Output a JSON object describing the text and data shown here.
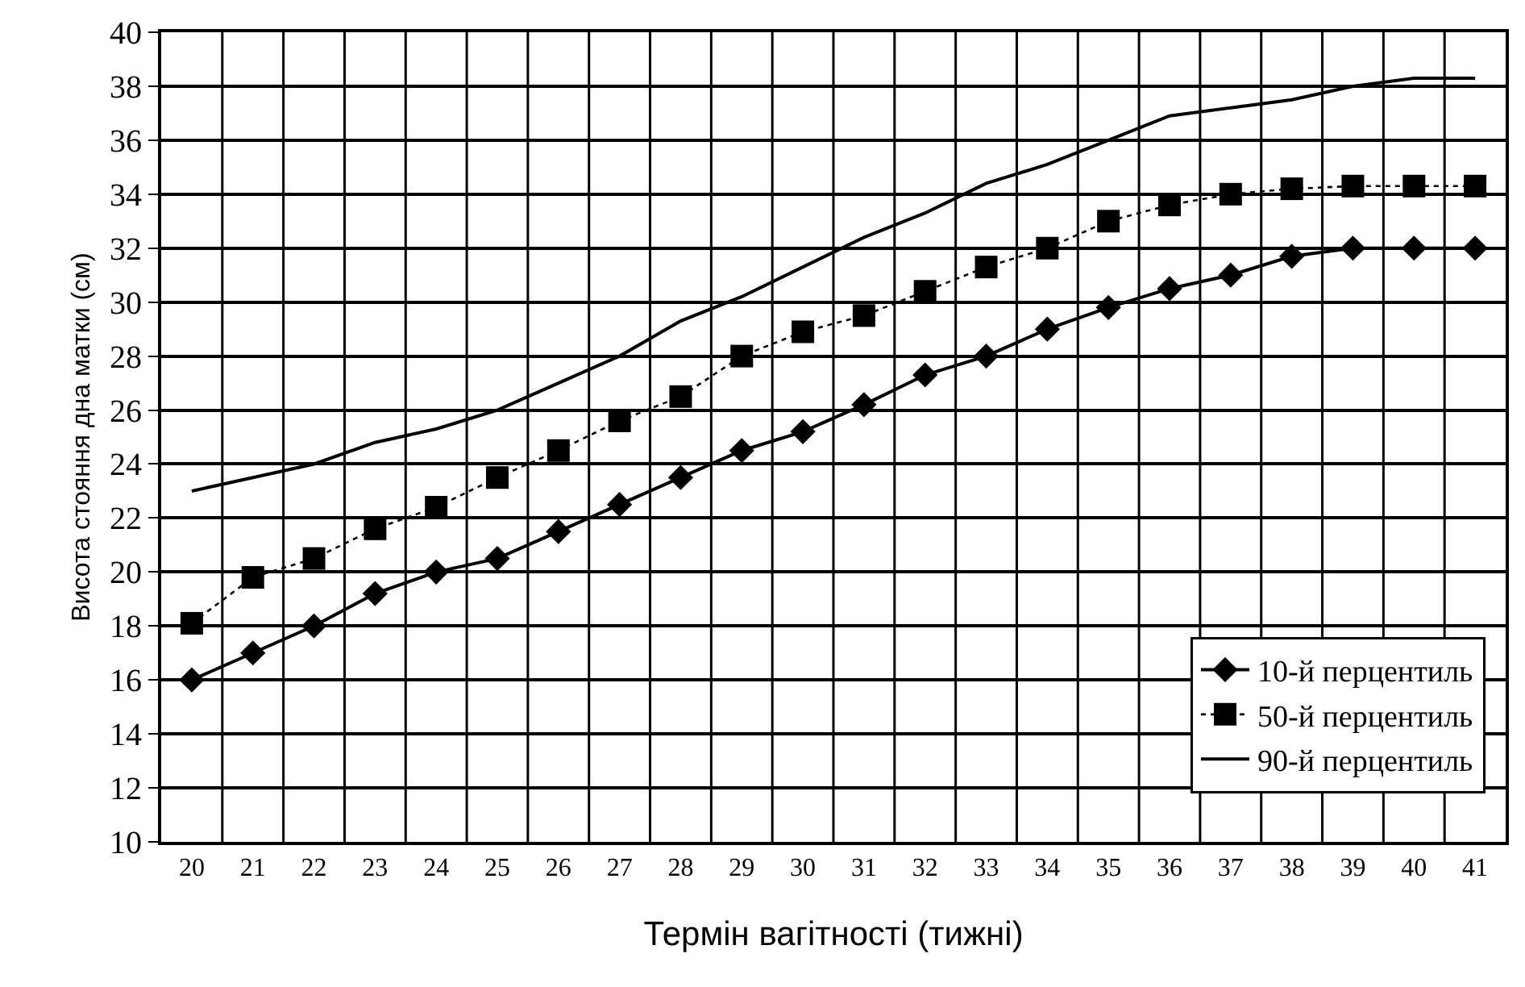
{
  "chart_data": {
    "type": "line",
    "xlabel": "Термін вагітності (тижні)",
    "ylabel": "Висота стояння дна матки (см)",
    "categories": [
      "20",
      "21",
      "22",
      "23",
      "24",
      "25",
      "26",
      "27",
      "28",
      "29",
      "30",
      "31",
      "32",
      "33",
      "34",
      "35",
      "36",
      "37",
      "38",
      "39",
      "40",
      "41"
    ],
    "series": [
      {
        "name": "10-й перцентиль",
        "color": "#000000",
        "marker": "diamond",
        "line_style": "solid",
        "values": [
          16,
          17,
          18,
          19.2,
          20,
          20.5,
          21.5,
          22.5,
          23.5,
          24.5,
          25.2,
          26.2,
          27.3,
          28,
          29,
          29.8,
          30.5,
          31,
          31.7,
          32,
          32,
          32
        ]
      },
      {
        "name": "50-й перцентиль",
        "color": "#000000",
        "marker": "square",
        "line_style": "dotted",
        "values": [
          18.1,
          19.8,
          20.5,
          21.6,
          22.4,
          23.5,
          24.5,
          25.6,
          26.5,
          28,
          28.9,
          29.5,
          30.4,
          31.3,
          32,
          33,
          33.6,
          34,
          34.2,
          34.3,
          34.3,
          34.3
        ]
      },
      {
        "name": "90-й перцентиль",
        "color": "#000000",
        "marker": "none",
        "line_style": "solid",
        "values": [
          23,
          23.5,
          24,
          24.8,
          25.3,
          26,
          27,
          28,
          29.3,
          30.2,
          31.3,
          32.4,
          33.3,
          34.4,
          35.1,
          36,
          36.9,
          37.2,
          37.5,
          38,
          38.3,
          38.3
        ]
      }
    ],
    "ylim": [
      10,
      40
    ],
    "yticks": [
      10,
      12,
      14,
      16,
      18,
      20,
      22,
      24,
      26,
      28,
      30,
      32,
      34,
      36,
      38,
      40
    ],
    "grid": true,
    "legend": "bottom right"
  }
}
